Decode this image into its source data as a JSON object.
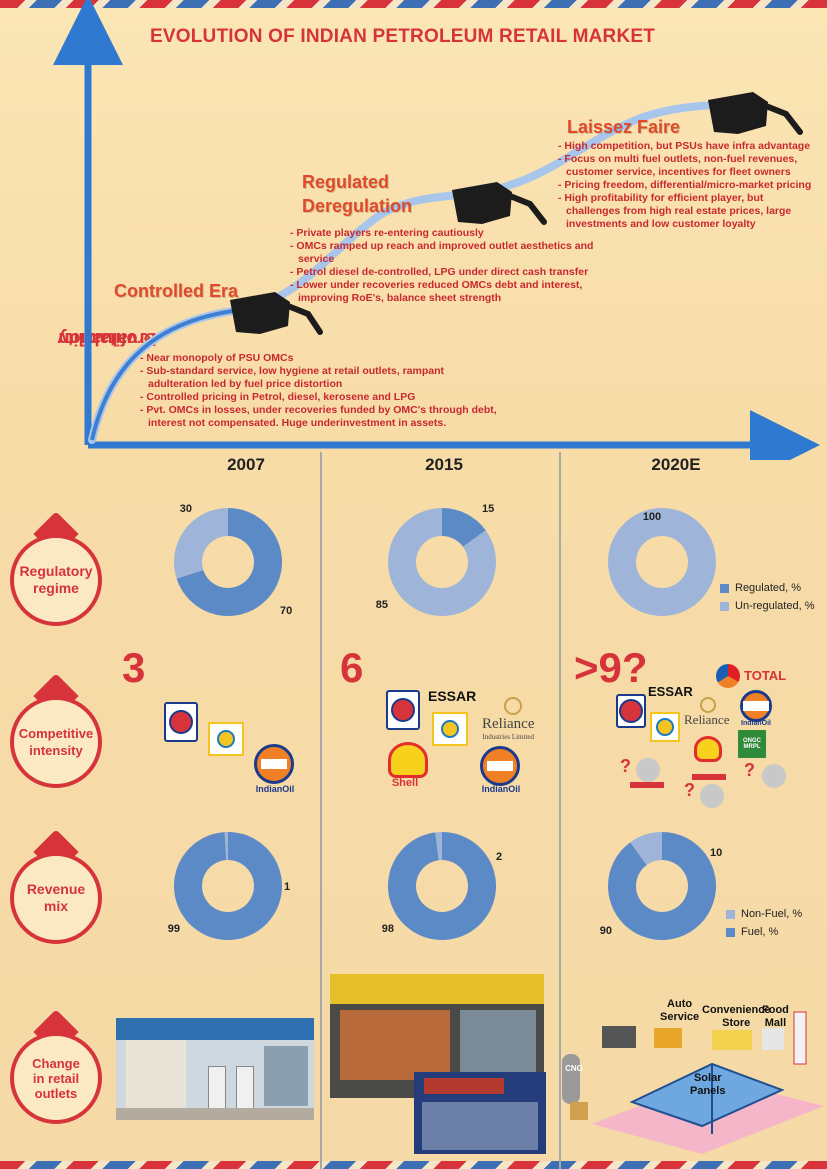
{
  "title": "EVOLUTION OF INDIAN PETROLEUM RETAIL MARKET",
  "y_axis_label": [
    "Profitability",
    "& valuation"
  ],
  "eras": [
    {
      "name": "Controlled Era",
      "notes": [
        "Near monopoly of PSU OMCs",
        "Sub-standard service, low hygiene at retail outlets, rampant adulteration led by fuel price distortion",
        "Controlled pricing in Petrol, diesel, kerosene and LPG",
        "Pvt. OMCs in losses, under recoveries funded by OMC's through debt, interest not compensated. Huge underinvestment in assets."
      ]
    },
    {
      "name": [
        "Regulated",
        "Deregulation"
      ],
      "notes": [
        "Private players re-entering cautiously",
        "OMCs ramped up reach and improved outlet aesthetics and service",
        "Petrol diesel de-controlled, LPG under direct cash transfer",
        "Lower under recoveries reduced OMCs debt and interest, improving RoE's, balance sheet strength"
      ]
    },
    {
      "name": "Laissez Faire",
      "notes": [
        "High competition, but PSUs have infra advantage",
        "Focus on multi fuel outlets, non-fuel revenues, customer service, incentives for fleet owners",
        "Pricing freedom, differential/micro-market pricing",
        "High profitability for efficient player, but challenges from high real estate prices, large investments and low customer loyalty"
      ]
    }
  ],
  "years": [
    "2007",
    "2015",
    "2020E"
  ],
  "rows": {
    "regulatory": [
      "Regulatory",
      "regime"
    ],
    "competitive": [
      "Competitive",
      "intensity"
    ],
    "revenue": [
      "Revenue",
      "mix"
    ],
    "outlets": [
      "Change",
      "in retail",
      "outlets"
    ]
  },
  "competitor_counts": [
    "3",
    "6",
    ">9?"
  ],
  "logos": {
    "essar": "ESSAR",
    "reliance": "Reliance",
    "reliance_sub": "Industries Limited",
    "shell": "Shell",
    "indianoil": "IndianOil",
    "total": "TOTAL",
    "bharat": "Bharat Petroleum",
    "ongc": "ONGC MRPL",
    "question": "?"
  },
  "outlet_2020_labels": {
    "auto": [
      "Auto",
      "Service"
    ],
    "store": [
      "Convenience",
      "Store"
    ],
    "food": [
      "Food",
      "Mall"
    ],
    "solar": [
      "Solar",
      "Panels"
    ],
    "cng": "CNG"
  },
  "colors": {
    "regulated": "#5b8ac7",
    "unregulated": "#9fb4d9",
    "fuel": "#5b8ac7",
    "nonfuel": "#9fb4d9",
    "accent": "#d6333b",
    "axis": "#2f7ad0"
  },
  "chart_data": [
    {
      "type": "pie",
      "title": "Regulatory regime 2007",
      "series": [
        {
          "name": "Regulated, %",
          "value": 70
        },
        {
          "name": "Un-regulated, %",
          "value": 30
        }
      ]
    },
    {
      "type": "pie",
      "title": "Regulatory regime 2015",
      "series": [
        {
          "name": "Regulated, %",
          "value": 15
        },
        {
          "name": "Un-regulated, %",
          "value": 85
        }
      ]
    },
    {
      "type": "pie",
      "title": "Regulatory regime 2020E",
      "series": [
        {
          "name": "Regulated, %",
          "value": 0
        },
        {
          "name": "Un-regulated, %",
          "value": 100
        }
      ]
    },
    {
      "type": "pie",
      "title": "Revenue mix 2007",
      "series": [
        {
          "name": "Fuel, %",
          "value": 99
        },
        {
          "name": "Non-Fuel, %",
          "value": 1
        }
      ]
    },
    {
      "type": "pie",
      "title": "Revenue mix 2015",
      "series": [
        {
          "name": "Fuel, %",
          "value": 98
        },
        {
          "name": "Non-Fuel, %",
          "value": 2
        }
      ]
    },
    {
      "type": "pie",
      "title": "Revenue mix 2020E",
      "series": [
        {
          "name": "Fuel, %",
          "value": 90
        },
        {
          "name": "Non-Fuel, %",
          "value": 10
        }
      ]
    }
  ],
  "legends": {
    "regulatory": [
      "Regulated, %",
      "Un-regulated, %"
    ],
    "revenue": [
      "Non-Fuel, %",
      "Fuel, %"
    ]
  }
}
